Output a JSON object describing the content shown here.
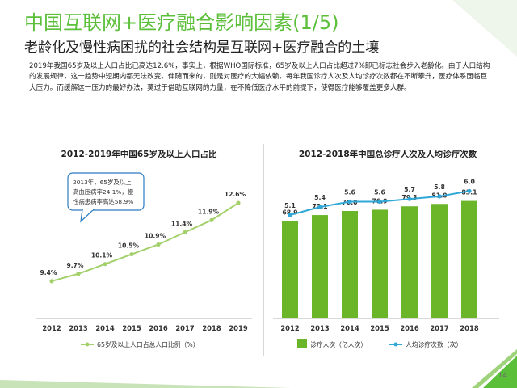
{
  "header": {
    "title": "中国互联网+医疗融合影响因素(1/5)",
    "subtitle": "老龄化及慢性病困扰的社会结构是互联网+医疗融合的土壤"
  },
  "intro_text": "2019年我国65岁及以上人口占比已高达12.6%，事实上，根据WHO国际标准，65岁及以上人口占比超过7%即已标志社会步入老龄化。由于人口结构的发展规律，这一趋势中短期内都无法改变。伴随而来的，则是对医疗的大幅依赖。每年我国诊疗人次及人均诊疗次数都在不断攀升，医疗体系面临巨大压力。而缓解这一压力的最好办法，莫过于借助互联网的力量，在不降低医疗水平的前提下，使得医疗能够覆盖更多人群。",
  "page_number": "14",
  "colors": {
    "accent_green": "#5bbf3a",
    "line_green": "#a4d06b",
    "bar_green": "#6ab528",
    "line_blue": "#2fa7d7",
    "callout_border": "#2b7bbf"
  },
  "chart_data": [
    {
      "type": "line",
      "title": "2012-2019年中国65岁及以上人口占比",
      "x": [
        "2012",
        "2013",
        "2014",
        "2015",
        "2016",
        "2017",
        "2018",
        "2019"
      ],
      "series": [
        {
          "name": "65岁及以上人口占总人口比例（%）",
          "values": [
            9.4,
            9.7,
            10.1,
            10.5,
            10.9,
            11.4,
            11.9,
            12.6
          ],
          "labels": [
            "9.4%",
            "9.7%",
            "10.1%",
            "10.5%",
            "10.9%",
            "11.4%",
            "11.9%",
            "12.6%"
          ]
        }
      ],
      "ylim": [
        8.6,
        13.1
      ],
      "grid": false,
      "legend": "bottom",
      "annotation": {
        "lines": [
          "2013年，65岁及以上",
          "高血压病率24.1%，慢",
          "性病患病率高达58.9%"
        ]
      }
    },
    {
      "type": "bar",
      "title": "2012-2018年中国总诊疗人次及人均诊疗次数",
      "categories": [
        "2012",
        "2013",
        "2014",
        "2015",
        "2016",
        "2017",
        "2018"
      ],
      "series": [
        {
          "name": "诊疗人次（亿人次）",
          "values": [
            68.9,
            73.1,
            76.0,
            76.9,
            79.3,
            81.0,
            83.1
          ],
          "labels": [
            "68.9",
            "73.1",
            "76.0",
            "76.9",
            "79.3",
            "81.0",
            "83.1"
          ]
        },
        {
          "name": "人均诊疗次数（次）",
          "type": "line",
          "values": [
            5.1,
            5.4,
            5.6,
            5.6,
            5.7,
            5.8,
            6.0
          ],
          "labels": [
            "5.1",
            "5.4",
            "5.6",
            "5.6",
            "5.7",
            "5.8",
            "6.0"
          ]
        }
      ],
      "grid": false,
      "legend": "bottom"
    }
  ]
}
